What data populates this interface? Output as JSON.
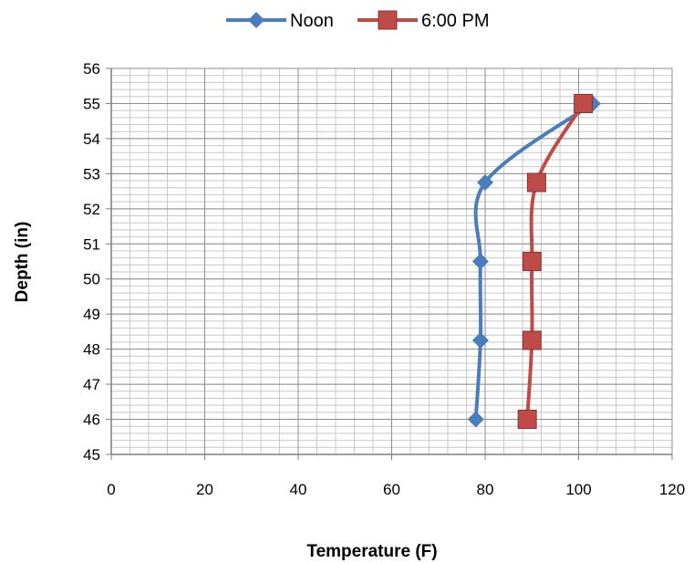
{
  "chart_data": {
    "type": "line",
    "title": "",
    "xlabel": "Temperature (F)",
    "ylabel": "Depth (in)",
    "xlim": [
      0,
      120
    ],
    "ylim": [
      45,
      56
    ],
    "x_ticks": [
      "0",
      "20",
      "40",
      "60",
      "80",
      "100",
      "120"
    ],
    "y_ticks": [
      "45",
      "46",
      "47",
      "48",
      "49",
      "50",
      "51",
      "52",
      "53",
      "54",
      "55",
      "56"
    ],
    "grid": true,
    "legend_position": "top",
    "series": [
      {
        "name": "Noon",
        "color": "#4a7ebb",
        "marker": "diamond",
        "x": [
          103,
          80,
          79,
          79,
          78
        ],
        "y": [
          55,
          52.75,
          50.5,
          48.25,
          46
        ]
      },
      {
        "name": "6:00 PM",
        "color": "#be4b48",
        "marker": "square",
        "x": [
          101,
          91,
          90,
          90,
          89
        ],
        "y": [
          55,
          52.75,
          50.5,
          48.25,
          46
        ]
      }
    ]
  }
}
